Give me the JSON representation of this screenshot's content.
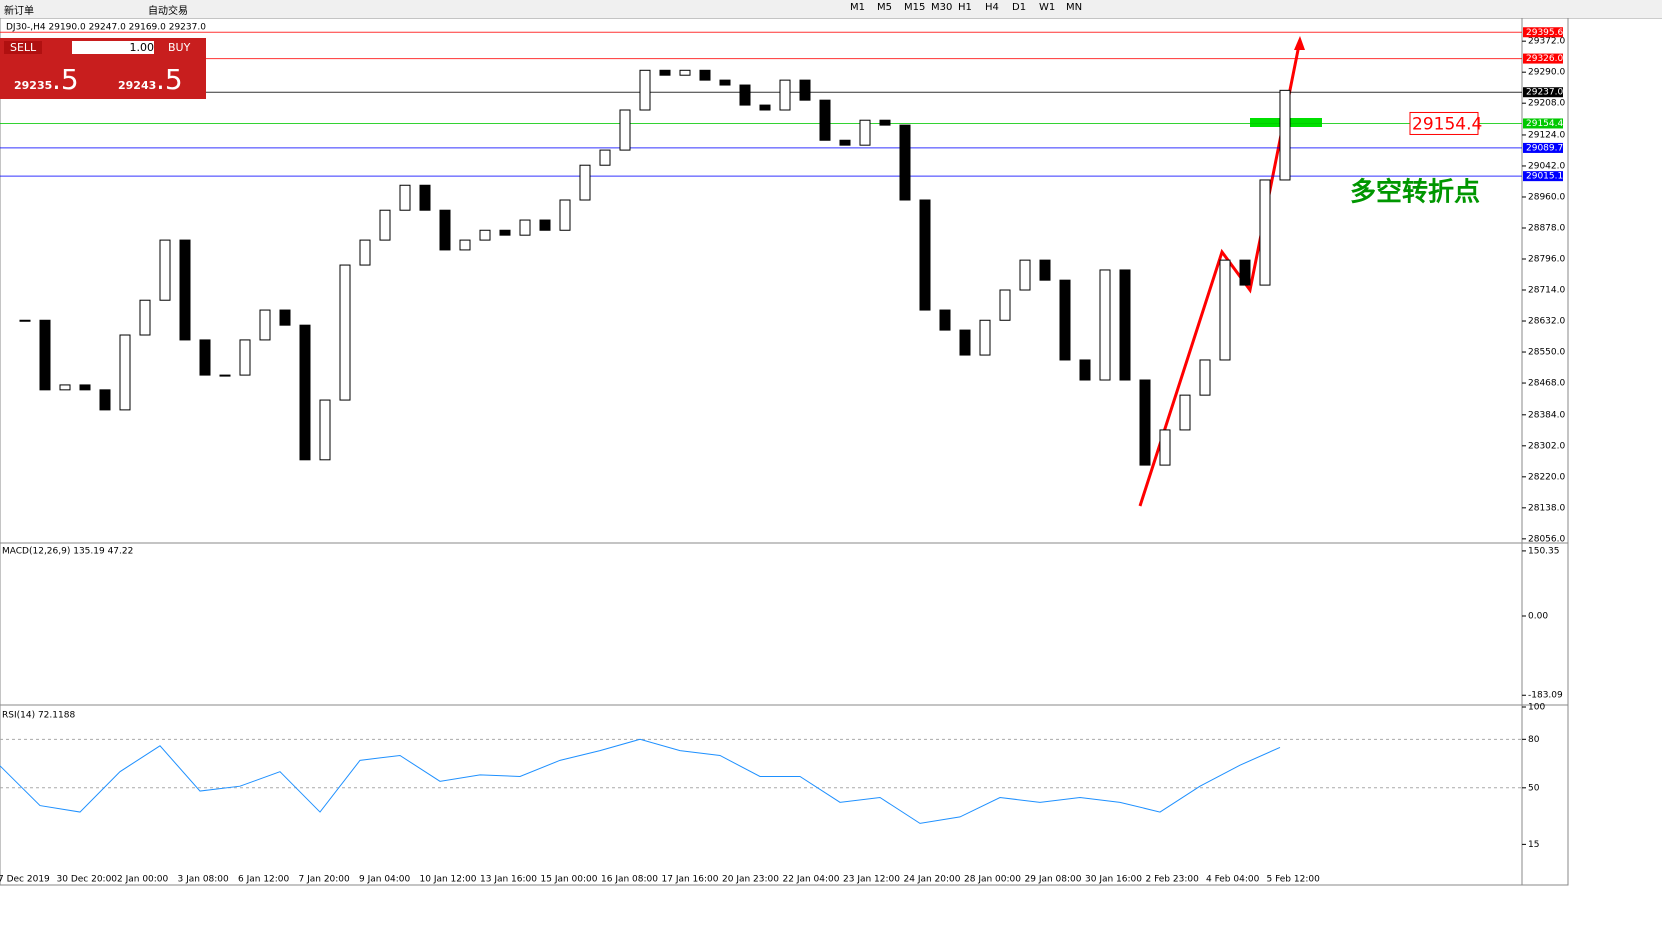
{
  "toolbar": {
    "new_order": "新订单",
    "auto_trading": "自动交易",
    "timeframes": [
      "M1",
      "M5",
      "M15",
      "M30",
      "H1",
      "H4",
      "D1",
      "W1",
      "MN"
    ]
  },
  "order_panel": {
    "sell": "SELL",
    "lots": "1.00",
    "buy": "BUY",
    "sell_price": "29235",
    "sell_price_frac": ".5",
    "buy_price": "29243",
    "buy_price_frac": ".5"
  },
  "chart_data": [
    {
      "type": "candlestick",
      "header": "DJ30-,H4 29190.0 29247.0 29169.0 29237.0",
      "annotation": "多空转折点",
      "values": [
        28634,
        28634,
        28450,
        28463,
        28450,
        28397,
        28595,
        28687,
        28846,
        28582,
        28489,
        28489,
        28582,
        28661,
        28621,
        28265,
        28423,
        28780,
        28846,
        28925,
        28991,
        28925,
        28820,
        28846,
        28872,
        28859,
        28899,
        28872,
        28952,
        29044,
        29084,
        29190,
        29295,
        29282,
        29295,
        29269,
        29256,
        29203,
        29190,
        29269,
        29216,
        29110,
        29097,
        29163,
        29150,
        28952,
        28661,
        28608,
        28542,
        28634,
        28714,
        28793,
        28740,
        28529,
        28476,
        28767,
        28476,
        28251,
        28344,
        28436,
        28529,
        28793,
        28727,
        29005,
        29242
      ],
      "ylim": [
        28045,
        29428
      ],
      "yticks": [
        {
          "value": 29372,
          "label": "29372.0"
        },
        {
          "value": 29290,
          "label": "29290.0"
        },
        {
          "value": 29208,
          "label": "29208.0"
        },
        {
          "value": 29124,
          "label": "29124.0"
        },
        {
          "value": 29042,
          "label": "29042.0"
        },
        {
          "value": 28960,
          "label": "28960.0"
        },
        {
          "value": 28878,
          "label": "28878.0"
        },
        {
          "value": 28796,
          "label": "28796.0"
        },
        {
          "value": 28714,
          "label": "28714.0"
        },
        {
          "value": 28632,
          "label": "28632.0"
        },
        {
          "value": 28550,
          "label": "28550.0"
        },
        {
          "value": 28468,
          "label": "28468.0"
        },
        {
          "value": 28384,
          "label": "28384.0"
        },
        {
          "value": 28302,
          "label": "28302.0"
        },
        {
          "value": 28220,
          "label": "28220.0"
        },
        {
          "value": 28138,
          "label": "28138.0"
        },
        {
          "value": 28056,
          "label": "28056.0"
        }
      ],
      "levels": [
        {
          "value": 29395.6,
          "label": "29395.6",
          "color": "#ff0000"
        },
        {
          "value": 29326,
          "label": "29326.0",
          "color": "#ff0000"
        },
        {
          "value": 29237,
          "label": "29237.0",
          "color": "#000000"
        },
        {
          "value": 29154.4,
          "label": "29154.4",
          "color": "#00c800"
        },
        {
          "value": 29089.7,
          "label": "29089.7",
          "color": "#0000ff"
        },
        {
          "value": 29015.1,
          "label": "29015.1",
          "color": "#0000ff"
        }
      ],
      "x_labels": [
        "7 Dec 2019",
        "30 Dec 20:00",
        "2 Jan 00:00",
        "3 Jan 08:00",
        "6 Jan 12:00",
        "7 Jan 20:00",
        "9 Jan 04:00",
        "10 Jan 12:00",
        "13 Jan 16:00",
        "15 Jan 00:00",
        "16 Jan 08:00",
        "17 Jan 16:00",
        "20 Jan 23:00",
        "22 Jan 04:00",
        "23 Jan 12:00",
        "24 Jan 20:00",
        "28 Jan 00:00",
        "29 Jan 08:00",
        "30 Jan 16:00",
        "2 Feb 23:00",
        "4 Feb 04:00",
        "5 Feb 12:00"
      ]
    },
    {
      "type": "macd",
      "label": "MACD(12,26,9) 135.19 47.22",
      "ylim": [
        -201,
        164
      ],
      "yticks": [
        150.35,
        {
          "value": 0,
          "label": "0.00"
        },
        -183.09
      ]
    },
    {
      "type": "line",
      "label": "RSI(14) 72.1188",
      "color": "#1e90ff",
      "ylim": [
        1,
        100
      ],
      "yticks": [
        100,
        80,
        50,
        15
      ],
      "values": [
        63.6,
        39,
        35,
        60,
        76,
        48,
        51,
        60,
        35,
        67,
        70,
        54,
        58,
        57,
        67,
        73,
        80,
        73,
        70,
        57,
        57,
        41,
        44,
        28,
        32,
        44,
        41,
        44,
        41,
        35,
        51,
        64,
        75
      ]
    }
  ]
}
